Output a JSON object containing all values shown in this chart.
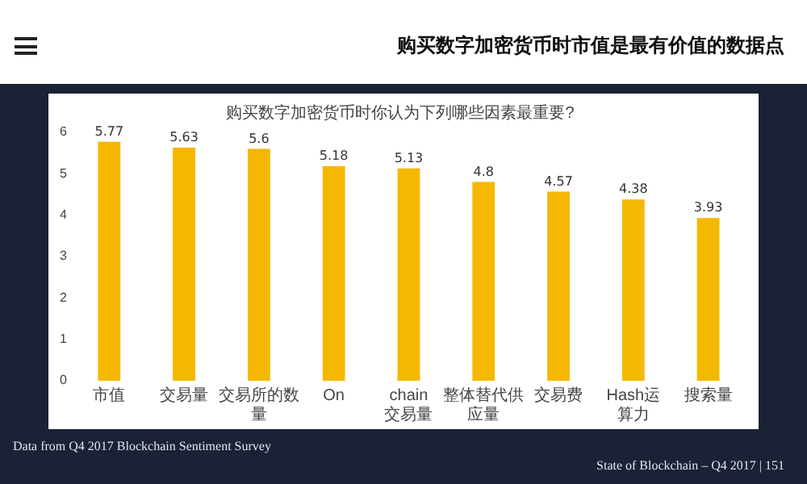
{
  "chart_data": {
    "type": "bar",
    "title": "购买数字加密货币时市值是最有价值的数据点",
    "subtitle": "购买数字加密货币时你认为下列哪些因素最重要?",
    "categories": [
      "市值",
      "交易量",
      "交易所的数量",
      "On",
      "chain交易量",
      "整体替代供应量",
      "交易费",
      "Hash运算力",
      "搜索量"
    ],
    "values": [
      5.77,
      5.63,
      5.6,
      5.18,
      5.13,
      4.8,
      4.57,
      4.38,
      3.93
    ],
    "color": "#f5b800",
    "ylim": [
      0,
      6
    ],
    "yticks": [
      0,
      1,
      2,
      3,
      4,
      5,
      6
    ],
    "grid": false,
    "legend": false,
    "data_labels": true,
    "annotations": [
      "Data from Q4 2017 Blockchain Sentiment Survey",
      "State of Blockchain – Q4 2017   |   151"
    ]
  }
}
